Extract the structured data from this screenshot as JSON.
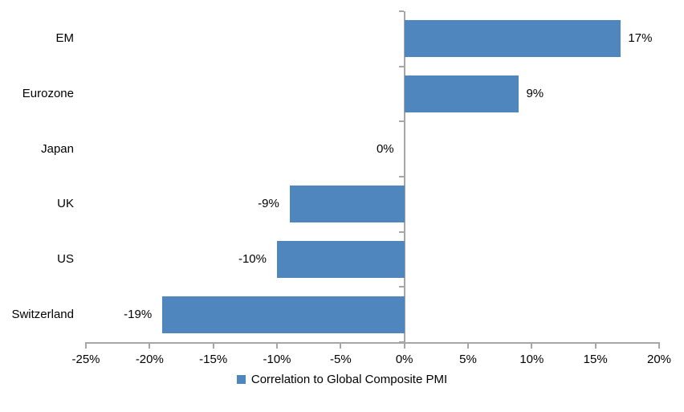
{
  "chart_data": {
    "type": "bar",
    "orientation": "horizontal",
    "title": "",
    "xlabel": "",
    "ylabel": "",
    "categories": [
      "EM",
      "Eurozone",
      "Japan",
      "UK",
      "US",
      "Switzerland"
    ],
    "series": [
      {
        "name": "Correlation to Global Composite PMI",
        "values": [
          17,
          9,
          0,
          -9,
          -10,
          -19
        ],
        "value_labels": [
          "17%",
          "9%",
          "0%",
          "-9%",
          "-10%",
          "-19%"
        ],
        "color": "#4E86BD"
      }
    ],
    "xlim": [
      -25,
      20
    ],
    "x_ticks": [
      {
        "value": -25,
        "label": "-25%"
      },
      {
        "value": -20,
        "label": "-20%"
      },
      {
        "value": -15,
        "label": "-15%"
      },
      {
        "value": -10,
        "label": "-10%"
      },
      {
        "value": -5,
        "label": "-5%"
      },
      {
        "value": 0,
        "label": "0%"
      },
      {
        "value": 5,
        "label": "5%"
      },
      {
        "value": 10,
        "label": "10%"
      },
      {
        "value": 15,
        "label": "15%"
      },
      {
        "value": 20,
        "label": "20%"
      }
    ],
    "grid": false,
    "legend_position": "bottom",
    "legend": [
      {
        "label": "Correlation to Global Composite PMI",
        "color": "#4E86BD"
      }
    ],
    "axis_color": "#A6A6A6",
    "text_color": "#000000"
  }
}
